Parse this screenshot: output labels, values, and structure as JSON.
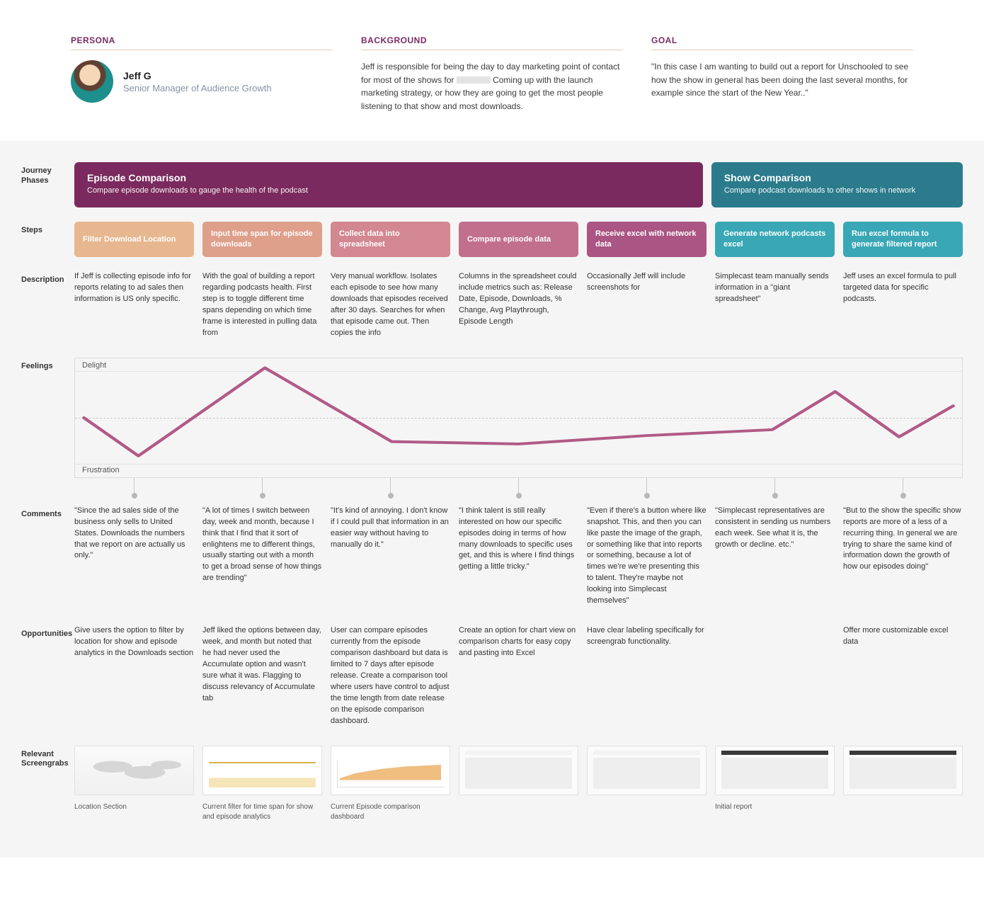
{
  "header": {
    "persona_label": "PERSONA",
    "background_label": "BACKGROUND",
    "goal_label": "GOAL",
    "name": "Jeff G",
    "title": "Senior Manager of Audience Growth",
    "background_pre": "Jeff is responsible for being the day to day marketing point of contact for most of the shows for ",
    "background_post": " Coming up with the launch marketing strategy, or how they are going to get the most people listening to that show and most downloads.",
    "goal_text": "\"In this case I am wanting to build out a report for Unschooled to see how the show in general has been doing the last several months, for example since the start of the New Year..\""
  },
  "rows": {
    "phases": "Journey Phases",
    "steps": "Steps",
    "description": "Description",
    "feelings": "Feelings",
    "comments": "Comments",
    "opportunities": "Opportunities",
    "screengrabs": "Relevant Screengrabs"
  },
  "phases": {
    "a": {
      "title": "Episode Comparison",
      "sub": "Compare episode downloads to gauge the health of the podcast",
      "bg": "#7a2a5e"
    },
    "b": {
      "title": "Show Comparison",
      "sub": "Compare podcast downloads to other shows in network",
      "bg": "#2b7b8c"
    }
  },
  "steps": [
    {
      "label": "Filter Download Location",
      "bg": "#e7b790"
    },
    {
      "label": "Input time span for episode downloads",
      "bg": "#de9f8b"
    },
    {
      "label": "Collect data into spreadsheet",
      "bg": "#d38791"
    },
    {
      "label": "Compare episode data",
      "bg": "#c16f8d"
    },
    {
      "label": "Receive excel with network data",
      "bg": "#aa5583"
    },
    {
      "label": "Generate network podcasts excel",
      "bg": "#39a7b5"
    },
    {
      "label": "Run excel formula to generate filtered report",
      "bg": "#39a7b5"
    }
  ],
  "descriptions": [
    "If Jeff is collecting episode info for reports relating to ad sales then information is US only specific.",
    "With the goal of building a report regarding podcasts health. First step is to toggle different time spans depending on which time frame is interested in pulling data from",
    "Very manual workflow. Isolates each episode to see how many downloads that episodes received after 30 days. Searches for when that episode came out. Then copies the info",
    "Columns in the spreadsheet could include metrics such as: Release Date, Episode, Downloads, % Change, Avg Playthrough, Episode Length",
    "Occasionally Jeff will include screenshots for",
    "Simplecast team manually sends information in a \"giant spreadsheet\"",
    "Jeff uses an excel formula to pull targeted data for specific podcasts."
  ],
  "feelings": {
    "top_label": "Delight",
    "bottom_label": "Frustration",
    "line_color": "#b15a87",
    "line_width": 4,
    "ylim": [
      0,
      100
    ],
    "points_y": [
      50,
      18,
      92,
      30,
      28,
      35,
      40,
      72,
      34,
      60
    ],
    "xs_pct": [
      1,
      7.14,
      21.4,
      35.7,
      50.0,
      64.3,
      78.6,
      85.7,
      92.9,
      99
    ]
  },
  "comments": [
    "\"Since the ad sales side of the business only sells to United States. Downloads the numbers that we report on are actually us only.\"",
    "\"A lot of times I switch between day, week and month, because I think that I find that it sort of enlightens me to different things, usually starting out with a month to get a broad sense of how things are trending\"",
    "\"It's kind of annoying. I don't know if I could pull that information in an easier way without having to manually do it.\"",
    "\"I think talent is still really interested on how our specific episodes doing in terms of how many downloads to specific uses get, and this is where I find things getting a little tricky.\"",
    "\"Even if there's a button where like snapshot. This, and then you can like paste the image of the graph, or something like that into reports or something, because a lot of times we're we're presenting this to talent. They're maybe not looking into Simplecast themselves\"",
    "\"Simplecast representatives are consistent in sending us numbers each week. See what it is, the growth or decline. etc.\"",
    "\"But to the show the specific show reports are more of a less of a recurring thing. In general we are trying to share the same kind of information down the growth of how our episodes doing\""
  ],
  "opportunities": [
    "Give users the option to filter by location for show and episode analytics in the Downloads section",
    "Jeff liked the options between day, week, and month but noted that he had never used the Accumulate option and wasn't sure what it was. Flagging to discuss relevancy of Accumulate tab",
    "User can compare episodes currently from the episode comparison dashboard but data is limited to 7 days after episode release. Create a comparison tool where users have control to adjust the time length from date release on the episode comparison dashboard.",
    "Create an option for chart view on comparison charts for easy copy and pasting into Excel",
    "Have clear labeling specifically for screengrab functionality.",
    "",
    "Offer more customizable excel data"
  ],
  "screengrabs": [
    {
      "cap": "Location Section",
      "kind": "world"
    },
    {
      "cap": "Current filter for time span for show and episode analytics",
      "kind": "chart1"
    },
    {
      "cap": "Current Episode comparison dashboard",
      "kind": "chart2"
    },
    {
      "cap": "",
      "kind": "blank"
    },
    {
      "cap": "",
      "kind": "blank"
    },
    {
      "cap": "Initial report",
      "kind": "blankdark"
    },
    {
      "cap": "",
      "kind": "blankdark"
    }
  ]
}
